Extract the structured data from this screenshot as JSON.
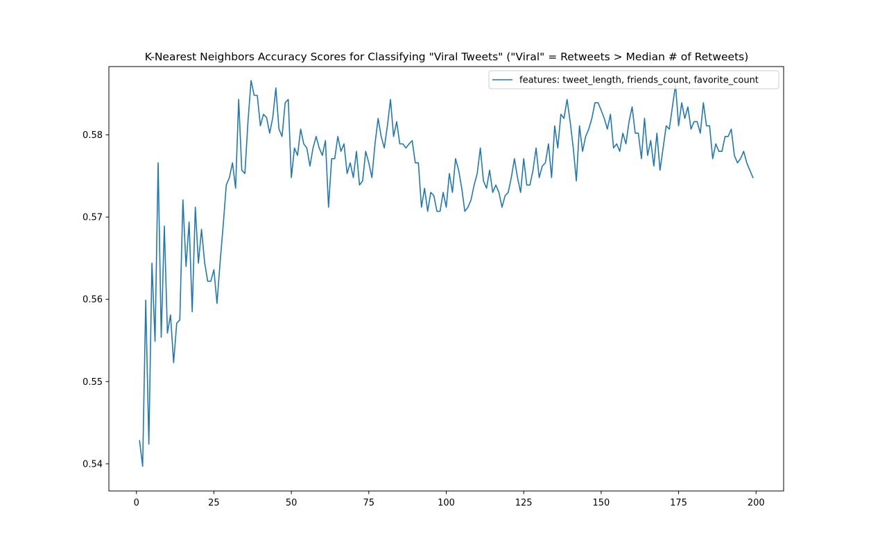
{
  "chart_data": {
    "type": "line",
    "title": "K-Nearest Neighbors Accuracy Scores for Classifying \"Viral Tweets\" (\"Viral\" = Retweets > Median # of Retweets)",
    "xlabel": "",
    "ylabel": "",
    "xlim": [
      -8.9,
      208.9
    ],
    "ylim": [
      0.5367,
      0.5883
    ],
    "x_ticks": [
      0,
      25,
      50,
      75,
      100,
      125,
      150,
      175,
      200
    ],
    "y_ticks": [
      0.54,
      0.55,
      0.56,
      0.57,
      0.58
    ],
    "grid": false,
    "legend_position": "top-right",
    "line_color": "#1f77b4",
    "series": [
      {
        "name": "features: tweet_length, friends_count, favorite_count",
        "x_start": 1,
        "x_step": 1,
        "values": [
          0.5428,
          0.5397,
          0.5599,
          0.5424,
          0.5644,
          0.5549,
          0.5766,
          0.5554,
          0.5689,
          0.5559,
          0.5581,
          0.5523,
          0.5571,
          0.5575,
          0.5721,
          0.564,
          0.5694,
          0.5585,
          0.5712,
          0.5644,
          0.5685,
          0.5645,
          0.5622,
          0.5622,
          0.5636,
          0.5595,
          0.5645,
          0.569,
          0.5739,
          0.5748,
          0.5766,
          0.5735,
          0.5843,
          0.5757,
          0.5753,
          0.5816,
          0.5866,
          0.5848,
          0.5848,
          0.5811,
          0.5825,
          0.5821,
          0.5802,
          0.5821,
          0.5857,
          0.5807,
          0.5798,
          0.5839,
          0.5843,
          0.5748,
          0.5784,
          0.5775,
          0.5807,
          0.5789,
          0.5784,
          0.5762,
          0.5784,
          0.5798,
          0.5784,
          0.5775,
          0.5793,
          0.5712,
          0.5771,
          0.5771,
          0.5798,
          0.578,
          0.5789,
          0.5753,
          0.5766,
          0.5748,
          0.578,
          0.5739,
          0.5744,
          0.578,
          0.5766,
          0.5748,
          0.5789,
          0.582,
          0.5798,
          0.5784,
          0.5811,
          0.5843,
          0.5798,
          0.5816,
          0.5789,
          0.5789,
          0.5784,
          0.5789,
          0.5793,
          0.5766,
          0.5766,
          0.5712,
          0.5735,
          0.5707,
          0.573,
          0.5726,
          0.5707,
          0.5707,
          0.573,
          0.5712,
          0.5753,
          0.573,
          0.5771,
          0.5757,
          0.5735,
          0.5707,
          0.5712,
          0.5721,
          0.5739,
          0.5753,
          0.5784,
          0.5744,
          0.5735,
          0.5757,
          0.573,
          0.5739,
          0.573,
          0.5712,
          0.5726,
          0.573,
          0.5748,
          0.5771,
          0.5748,
          0.573,
          0.5771,
          0.5739,
          0.5739,
          0.5757,
          0.5784,
          0.5748,
          0.5762,
          0.5766,
          0.5789,
          0.5748,
          0.5811,
          0.5784,
          0.5825,
          0.582,
          0.5843,
          0.5816,
          0.5784,
          0.5744,
          0.5811,
          0.578,
          0.5798,
          0.5807,
          0.582,
          0.5839,
          0.5839,
          0.583,
          0.582,
          0.5807,
          0.5825,
          0.5784,
          0.5789,
          0.578,
          0.5802,
          0.5789,
          0.5816,
          0.5834,
          0.5802,
          0.5802,
          0.5771,
          0.582,
          0.5775,
          0.5793,
          0.5762,
          0.5802,
          0.5757,
          0.5784,
          0.5811,
          0.5807,
          0.5834,
          0.5861,
          0.5811,
          0.5839,
          0.582,
          0.5834,
          0.5807,
          0.5816,
          0.5816,
          0.5802,
          0.5839,
          0.5811,
          0.5811,
          0.5771,
          0.5789,
          0.578,
          0.578,
          0.5798,
          0.5798,
          0.5807,
          0.5775,
          0.5766,
          0.5771,
          0.578,
          0.5766,
          0.5757,
          0.5748
        ]
      }
    ]
  }
}
